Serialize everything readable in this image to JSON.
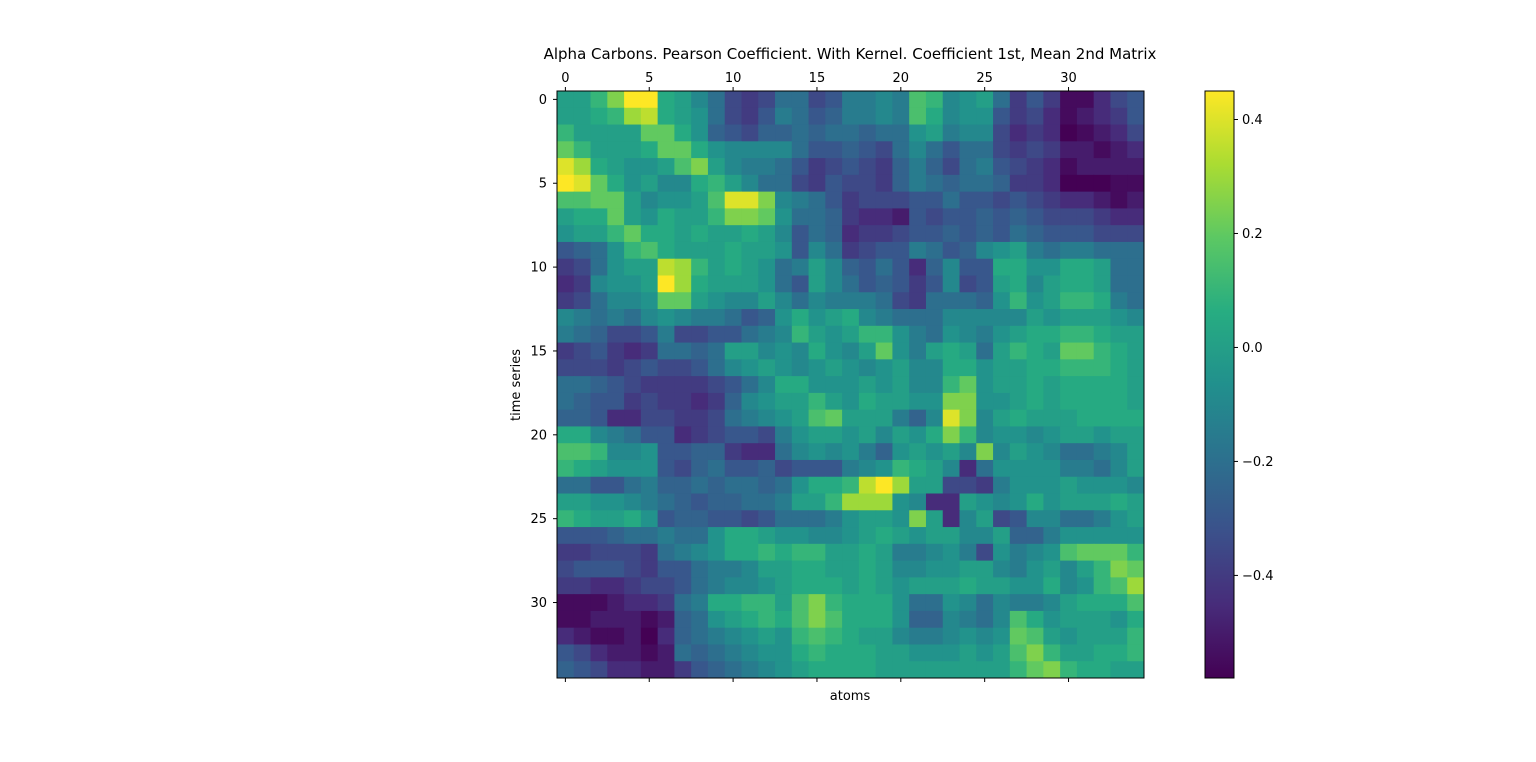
{
  "chart_data": {
    "type": "heatmap",
    "title": "Alpha Carbons. Pearson Coefficient. With Kernel. Coefficient 1st, Mean 2nd Matrix",
    "xlabel": "atoms",
    "ylabel": "time series",
    "x_ticks": [
      "0",
      "5",
      "10",
      "15",
      "20",
      "25",
      "30"
    ],
    "y_ticks": [
      "0",
      "5",
      "10",
      "15",
      "20",
      "25",
      "30"
    ],
    "x_axis_position": "top",
    "n_rows": 35,
    "n_cols": 35,
    "colormap": "viridis",
    "vmin": -0.58,
    "vmax": 0.45,
    "colorbar": {
      "ticks": [
        {
          "value": 0.4,
          "label": "0.4"
        },
        {
          "value": 0.2,
          "label": "0.2"
        },
        {
          "value": 0.0,
          "label": "0.0"
        },
        {
          "value": -0.2,
          "label": "−0.2"
        },
        {
          "value": -0.4,
          "label": "−0.4"
        }
      ]
    },
    "values": [
      [
        0.0,
        0.0,
        0.1,
        0.25,
        0.45,
        0.45,
        0.05,
        0.0,
        -0.1,
        -0.2,
        -0.35,
        -0.4,
        -0.35,
        -0.2,
        -0.2,
        -0.35,
        -0.3,
        -0.15,
        -0.15,
        -0.1,
        -0.15,
        0.15,
        0.1,
        -0.1,
        -0.05,
        0.0,
        -0.2,
        -0.4,
        -0.3,
        -0.4,
        -0.55,
        -0.55,
        -0.45,
        -0.35,
        -0.3
      ],
      [
        0.0,
        0.0,
        0.05,
        0.1,
        0.3,
        0.35,
        0.05,
        0.0,
        -0.05,
        -0.2,
        -0.35,
        -0.4,
        -0.3,
        -0.15,
        -0.2,
        -0.3,
        -0.25,
        -0.15,
        -0.15,
        -0.1,
        -0.15,
        0.15,
        0.05,
        -0.1,
        -0.05,
        -0.05,
        -0.3,
        -0.4,
        -0.35,
        -0.45,
        -0.55,
        -0.5,
        -0.45,
        -0.4,
        -0.3
      ],
      [
        0.1,
        0.0,
        0.0,
        0.0,
        0.0,
        0.2,
        0.2,
        0.05,
        -0.05,
        -0.25,
        -0.3,
        -0.35,
        -0.25,
        -0.25,
        -0.2,
        -0.25,
        -0.2,
        -0.2,
        -0.25,
        -0.2,
        -0.2,
        -0.05,
        0.0,
        -0.15,
        -0.1,
        -0.1,
        -0.35,
        -0.45,
        -0.4,
        -0.45,
        -0.58,
        -0.55,
        -0.5,
        -0.45,
        -0.35
      ],
      [
        0.2,
        0.1,
        0.0,
        0.0,
        0.0,
        0.05,
        0.2,
        0.2,
        0.05,
        -0.05,
        -0.1,
        -0.1,
        -0.1,
        -0.1,
        -0.2,
        -0.3,
        -0.3,
        -0.25,
        -0.3,
        -0.35,
        -0.2,
        -0.1,
        -0.2,
        -0.3,
        -0.2,
        -0.2,
        -0.35,
        -0.4,
        -0.35,
        -0.4,
        -0.5,
        -0.5,
        -0.55,
        -0.5,
        -0.45
      ],
      [
        0.4,
        0.3,
        0.05,
        0.0,
        -0.05,
        -0.05,
        0.0,
        0.15,
        0.25,
        0.0,
        -0.1,
        -0.15,
        -0.15,
        -0.2,
        -0.3,
        -0.4,
        -0.35,
        -0.3,
        -0.35,
        -0.4,
        -0.25,
        -0.15,
        -0.25,
        -0.35,
        -0.2,
        -0.15,
        -0.3,
        -0.35,
        -0.4,
        -0.45,
        -0.55,
        -0.5,
        -0.5,
        -0.5,
        -0.5
      ],
      [
        0.45,
        0.4,
        0.2,
        0.05,
        -0.05,
        0.0,
        -0.1,
        -0.1,
        0.05,
        0.1,
        0.0,
        -0.1,
        -0.2,
        -0.2,
        -0.35,
        -0.4,
        -0.3,
        -0.35,
        -0.35,
        -0.4,
        -0.25,
        -0.15,
        -0.2,
        -0.25,
        -0.2,
        -0.2,
        -0.25,
        -0.4,
        -0.4,
        -0.45,
        -0.58,
        -0.58,
        -0.58,
        -0.55,
        -0.55
      ],
      [
        0.15,
        0.15,
        0.2,
        0.2,
        0.0,
        -0.1,
        -0.05,
        -0.05,
        0.0,
        0.15,
        0.4,
        0.4,
        0.25,
        -0.1,
        -0.15,
        -0.2,
        -0.3,
        -0.4,
        -0.35,
        -0.35,
        -0.35,
        -0.3,
        -0.3,
        -0.2,
        -0.3,
        -0.3,
        -0.35,
        -0.3,
        -0.35,
        -0.4,
        -0.45,
        -0.45,
        -0.5,
        -0.55,
        -0.5
      ],
      [
        0.0,
        0.05,
        0.05,
        0.2,
        0.0,
        -0.05,
        0.05,
        0.0,
        0.0,
        0.1,
        0.25,
        0.25,
        0.2,
        -0.05,
        -0.2,
        -0.2,
        -0.25,
        -0.4,
        -0.45,
        -0.45,
        -0.5,
        -0.3,
        -0.35,
        -0.3,
        -0.3,
        -0.25,
        -0.3,
        -0.25,
        -0.3,
        -0.35,
        -0.35,
        -0.35,
        -0.4,
        -0.45,
        -0.45
      ],
      [
        -0.05,
        0.0,
        0.0,
        0.1,
        0.2,
        0.05,
        0.05,
        0.0,
        0.05,
        0.0,
        0.0,
        0.05,
        0.0,
        -0.1,
        -0.3,
        -0.2,
        -0.25,
        -0.45,
        -0.4,
        -0.4,
        -0.35,
        -0.3,
        -0.3,
        -0.25,
        -0.3,
        -0.25,
        -0.3,
        -0.2,
        -0.25,
        -0.3,
        -0.3,
        -0.3,
        -0.35,
        -0.35,
        -0.35
      ],
      [
        -0.3,
        -0.25,
        -0.2,
        -0.05,
        0.1,
        0.15,
        0.05,
        0.0,
        0.0,
        0.0,
        0.05,
        0.0,
        0.0,
        -0.05,
        -0.3,
        -0.1,
        -0.2,
        -0.4,
        -0.35,
        -0.3,
        -0.3,
        -0.15,
        -0.2,
        -0.3,
        -0.25,
        -0.1,
        -0.05,
        0.0,
        -0.15,
        -0.2,
        -0.15,
        -0.15,
        -0.2,
        -0.2,
        -0.2
      ],
      [
        -0.4,
        -0.35,
        -0.2,
        -0.05,
        0.0,
        0.0,
        0.35,
        0.3,
        0.1,
        0.0,
        0.05,
        0.0,
        -0.05,
        -0.2,
        -0.15,
        0.0,
        -0.1,
        -0.25,
        -0.3,
        -0.2,
        -0.3,
        -0.45,
        -0.25,
        -0.1,
        -0.3,
        -0.3,
        0.05,
        0.05,
        -0.05,
        -0.05,
        0.05,
        0.05,
        0.0,
        -0.2,
        -0.2
      ],
      [
        -0.45,
        -0.4,
        -0.1,
        -0.05,
        -0.05,
        0.0,
        0.45,
        0.3,
        0.05,
        0.0,
        0.0,
        0.0,
        -0.05,
        -0.2,
        -0.3,
        0.0,
        -0.1,
        -0.2,
        -0.3,
        -0.25,
        -0.3,
        -0.4,
        -0.3,
        -0.1,
        -0.35,
        -0.3,
        0.0,
        0.05,
        -0.1,
        0.0,
        0.05,
        0.05,
        0.0,
        -0.2,
        -0.2
      ],
      [
        -0.4,
        -0.35,
        -0.2,
        -0.1,
        -0.1,
        -0.05,
        0.2,
        0.2,
        0.0,
        -0.05,
        -0.1,
        -0.1,
        0.0,
        -0.1,
        -0.2,
        -0.1,
        -0.15,
        -0.15,
        -0.15,
        -0.2,
        -0.35,
        -0.4,
        -0.2,
        -0.2,
        -0.2,
        -0.25,
        -0.05,
        0.1,
        -0.05,
        0.0,
        0.1,
        0.1,
        0.05,
        -0.15,
        -0.2
      ],
      [
        -0.1,
        -0.15,
        -0.2,
        -0.15,
        -0.2,
        -0.1,
        -0.05,
        -0.1,
        -0.15,
        -0.15,
        -0.2,
        -0.3,
        -0.25,
        -0.05,
        0.05,
        -0.05,
        0.0,
        0.05,
        -0.1,
        -0.15,
        -0.2,
        -0.2,
        -0.2,
        -0.1,
        -0.1,
        -0.1,
        -0.1,
        -0.1,
        0.0,
        -0.05,
        0.0,
        0.0,
        0.0,
        -0.05,
        -0.1
      ],
      [
        -0.15,
        -0.2,
        -0.25,
        -0.35,
        -0.35,
        -0.3,
        -0.15,
        -0.35,
        -0.35,
        -0.3,
        -0.3,
        -0.2,
        -0.15,
        -0.1,
        0.1,
        0.0,
        -0.05,
        0.0,
        0.1,
        0.1,
        -0.05,
        -0.15,
        -0.2,
        -0.05,
        -0.1,
        -0.15,
        -0.05,
        0.0,
        0.05,
        0.05,
        0.1,
        0.1,
        0.05,
        0.0,
        0.0
      ],
      [
        -0.4,
        -0.35,
        -0.3,
        -0.4,
        -0.45,
        -0.4,
        -0.2,
        -0.2,
        -0.25,
        -0.2,
        0.0,
        0.0,
        -0.1,
        -0.05,
        -0.1,
        0.05,
        -0.05,
        -0.1,
        0.0,
        0.2,
        -0.05,
        -0.15,
        0.0,
        0.05,
        0.0,
        -0.2,
        0.0,
        0.1,
        0.05,
        0.0,
        0.2,
        0.2,
        0.1,
        0.05,
        0.0
      ],
      [
        -0.35,
        -0.35,
        -0.35,
        -0.4,
        -0.35,
        -0.3,
        -0.35,
        -0.35,
        -0.3,
        -0.2,
        -0.1,
        -0.05,
        0.0,
        -0.05,
        -0.1,
        -0.05,
        0.0,
        -0.05,
        -0.1,
        -0.05,
        0.0,
        -0.1,
        -0.1,
        0.05,
        0.05,
        -0.05,
        0.0,
        0.0,
        0.05,
        0.05,
        0.1,
        0.1,
        0.1,
        0.05,
        0.0
      ],
      [
        -0.2,
        -0.2,
        -0.25,
        -0.3,
        -0.35,
        -0.4,
        -0.4,
        -0.4,
        -0.4,
        -0.35,
        -0.3,
        -0.2,
        -0.1,
        0.05,
        0.05,
        -0.05,
        -0.05,
        -0.05,
        0.0,
        -0.05,
        0.0,
        -0.1,
        -0.1,
        0.1,
        0.2,
        -0.05,
        0.0,
        0.0,
        0.05,
        0.0,
        0.05,
        0.05,
        0.05,
        0.05,
        0.0
      ],
      [
        -0.2,
        -0.25,
        -0.3,
        -0.3,
        -0.4,
        -0.35,
        -0.4,
        -0.4,
        -0.45,
        -0.4,
        -0.25,
        -0.1,
        -0.05,
        0.0,
        0.0,
        0.1,
        0.0,
        -0.05,
        0.05,
        0.0,
        0.0,
        -0.05,
        -0.05,
        0.25,
        0.25,
        -0.05,
        -0.05,
        0.0,
        0.05,
        0.0,
        0.05,
        0.05,
        0.05,
        0.05,
        0.0
      ],
      [
        -0.25,
        -0.25,
        -0.3,
        -0.45,
        -0.45,
        -0.35,
        -0.35,
        -0.4,
        -0.4,
        -0.35,
        -0.2,
        -0.15,
        -0.1,
        -0.05,
        0.0,
        0.15,
        0.2,
        0.0,
        0.0,
        0.0,
        -0.15,
        -0.25,
        -0.1,
        0.4,
        0.25,
        -0.1,
        0.0,
        0.05,
        0.0,
        0.0,
        0.0,
        0.05,
        0.05,
        0.05,
        0.05
      ],
      [
        0.05,
        0.05,
        -0.1,
        -0.15,
        -0.2,
        -0.3,
        -0.3,
        -0.45,
        -0.4,
        -0.35,
        -0.3,
        -0.3,
        -0.35,
        -0.15,
        -0.05,
        0.0,
        0.0,
        -0.05,
        0.0,
        -0.1,
        0.0,
        -0.05,
        0.05,
        0.25,
        0.1,
        -0.1,
        -0.05,
        -0.05,
        -0.1,
        -0.05,
        0.0,
        0.0,
        -0.05,
        0.0,
        0.0
      ],
      [
        0.15,
        0.15,
        0.1,
        -0.1,
        -0.1,
        -0.05,
        -0.3,
        -0.3,
        -0.25,
        -0.25,
        -0.4,
        -0.45,
        -0.45,
        -0.2,
        -0.1,
        -0.05,
        -0.1,
        -0.05,
        -0.15,
        -0.25,
        -0.05,
        0.0,
        -0.05,
        0.0,
        -0.1,
        0.25,
        -0.1,
        0.0,
        -0.05,
        -0.1,
        -0.2,
        -0.2,
        -0.15,
        -0.1,
        0.0
      ],
      [
        0.1,
        0.05,
        0.0,
        -0.05,
        -0.05,
        -0.05,
        -0.3,
        -0.35,
        -0.25,
        -0.2,
        -0.3,
        -0.3,
        -0.25,
        -0.35,
        -0.3,
        -0.3,
        -0.3,
        -0.15,
        -0.1,
        -0.05,
        0.1,
        0.05,
        0.0,
        -0.1,
        -0.45,
        -0.2,
        -0.05,
        -0.05,
        -0.05,
        -0.05,
        -0.15,
        -0.15,
        -0.2,
        -0.1,
        0.0
      ],
      [
        -0.2,
        -0.2,
        -0.3,
        -0.3,
        -0.2,
        -0.15,
        -0.25,
        -0.25,
        -0.2,
        -0.25,
        -0.2,
        -0.2,
        -0.25,
        -0.2,
        -0.05,
        0.05,
        0.05,
        0.1,
        0.35,
        0.45,
        0.3,
        0.0,
        0.0,
        -0.35,
        -0.35,
        -0.4,
        -0.15,
        -0.05,
        -0.05,
        -0.05,
        0.0,
        -0.05,
        -0.05,
        -0.05,
        -0.1
      ],
      [
        0.0,
        0.0,
        -0.05,
        -0.05,
        -0.1,
        -0.15,
        -0.2,
        -0.25,
        -0.3,
        -0.25,
        -0.25,
        -0.2,
        -0.2,
        -0.15,
        0.0,
        0.0,
        0.1,
        0.3,
        0.3,
        0.3,
        -0.05,
        -0.1,
        -0.45,
        -0.45,
        0.0,
        -0.05,
        -0.1,
        -0.05,
        0.05,
        -0.05,
        0.0,
        0.0,
        0.0,
        0.05,
        0.0
      ],
      [
        0.1,
        0.05,
        0.0,
        0.0,
        0.05,
        -0.05,
        -0.3,
        -0.25,
        -0.25,
        -0.3,
        -0.3,
        -0.35,
        -0.3,
        -0.2,
        -0.2,
        -0.2,
        -0.15,
        -0.05,
        0.0,
        0.0,
        -0.05,
        0.25,
        0.0,
        -0.45,
        -0.1,
        0.0,
        -0.35,
        -0.3,
        -0.1,
        -0.1,
        -0.2,
        -0.2,
        -0.15,
        -0.05,
        0.0
      ],
      [
        -0.3,
        -0.3,
        -0.3,
        -0.25,
        -0.2,
        -0.2,
        -0.15,
        -0.2,
        -0.2,
        -0.05,
        0.05,
        0.05,
        0.0,
        -0.05,
        -0.05,
        -0.1,
        -0.1,
        -0.05,
        0.0,
        0.05,
        0.0,
        -0.05,
        0.0,
        0.0,
        -0.1,
        -0.1,
        0.0,
        -0.25,
        -0.25,
        -0.15,
        -0.05,
        -0.05,
        -0.05,
        -0.05,
        -0.05
      ],
      [
        -0.4,
        -0.4,
        -0.35,
        -0.35,
        -0.35,
        -0.4,
        -0.2,
        -0.15,
        -0.1,
        -0.05,
        0.05,
        0.05,
        0.1,
        0.05,
        0.1,
        0.1,
        0.0,
        0.0,
        0.05,
        0.0,
        -0.15,
        -0.15,
        -0.1,
        -0.05,
        -0.15,
        -0.35,
        -0.05,
        -0.15,
        -0.1,
        -0.05,
        0.15,
        0.2,
        0.2,
        0.2,
        0.1
      ],
      [
        -0.35,
        -0.3,
        -0.3,
        -0.3,
        -0.35,
        -0.4,
        -0.3,
        -0.3,
        -0.2,
        -0.15,
        -0.15,
        -0.1,
        0.0,
        0.0,
        0.05,
        0.05,
        0.0,
        0.0,
        0.05,
        0.0,
        -0.1,
        -0.1,
        -0.05,
        -0.05,
        0.0,
        0.0,
        -0.1,
        -0.15,
        -0.05,
        0.0,
        -0.1,
        0.0,
        0.1,
        0.25,
        0.2
      ],
      [
        -0.4,
        -0.4,
        -0.45,
        -0.45,
        -0.4,
        -0.35,
        -0.35,
        -0.3,
        -0.2,
        -0.15,
        -0.1,
        -0.1,
        -0.05,
        0.0,
        0.05,
        0.05,
        0.05,
        0.0,
        0.05,
        0.0,
        -0.05,
        0.0,
        0.0,
        0.0,
        0.05,
        0.0,
        0.0,
        -0.05,
        -0.05,
        0.05,
        -0.1,
        -0.05,
        0.1,
        0.15,
        0.3
      ],
      [
        -0.55,
        -0.55,
        -0.55,
        -0.5,
        -0.45,
        -0.45,
        -0.4,
        -0.2,
        -0.15,
        0.05,
        0.05,
        0.1,
        0.1,
        0.0,
        0.15,
        0.25,
        0.1,
        0.05,
        0.05,
        0.05,
        -0.05,
        -0.2,
        -0.2,
        -0.05,
        -0.1,
        -0.2,
        -0.1,
        -0.15,
        -0.15,
        -0.1,
        0.0,
        0.05,
        0.05,
        0.05,
        0.15
      ],
      [
        -0.55,
        -0.55,
        -0.5,
        -0.5,
        -0.5,
        -0.55,
        -0.5,
        -0.25,
        -0.2,
        -0.05,
        0.0,
        0.05,
        0.1,
        0.05,
        0.15,
        0.25,
        0.15,
        0.05,
        0.05,
        0.05,
        -0.05,
        -0.25,
        -0.25,
        -0.1,
        -0.15,
        -0.2,
        -0.1,
        0.15,
        0.05,
        -0.05,
        0.0,
        0.0,
        0.0,
        -0.05,
        0.05
      ],
      [
        -0.45,
        -0.5,
        -0.55,
        -0.55,
        -0.5,
        -0.58,
        -0.45,
        -0.25,
        -0.2,
        -0.15,
        -0.1,
        -0.05,
        0.0,
        -0.05,
        0.1,
        0.15,
        0.1,
        0.05,
        0.0,
        0.0,
        -0.1,
        -0.15,
        -0.15,
        -0.1,
        -0.05,
        -0.1,
        -0.05,
        0.2,
        0.15,
        0.0,
        -0.05,
        0.0,
        0.0,
        0.0,
        0.1
      ],
      [
        -0.3,
        -0.35,
        -0.45,
        -0.5,
        -0.5,
        -0.55,
        -0.5,
        -0.2,
        -0.25,
        -0.2,
        -0.15,
        -0.1,
        -0.05,
        -0.05,
        0.05,
        0.1,
        0.05,
        0.05,
        0.05,
        0.0,
        0.0,
        -0.05,
        -0.05,
        -0.05,
        0.0,
        -0.05,
        0.0,
        0.15,
        0.25,
        0.1,
        0.0,
        0.0,
        0.05,
        0.05,
        0.1
      ],
      [
        -0.25,
        -0.3,
        -0.35,
        -0.45,
        -0.45,
        -0.5,
        -0.5,
        -0.4,
        -0.3,
        -0.25,
        -0.2,
        -0.15,
        -0.1,
        -0.05,
        0.0,
        0.05,
        0.05,
        0.05,
        0.05,
        0.0,
        0.0,
        0.0,
        0.0,
        0.0,
        0.0,
        0.0,
        0.0,
        0.1,
        0.2,
        0.25,
        0.1,
        0.05,
        0.05,
        0.0,
        0.0
      ]
    ]
  }
}
